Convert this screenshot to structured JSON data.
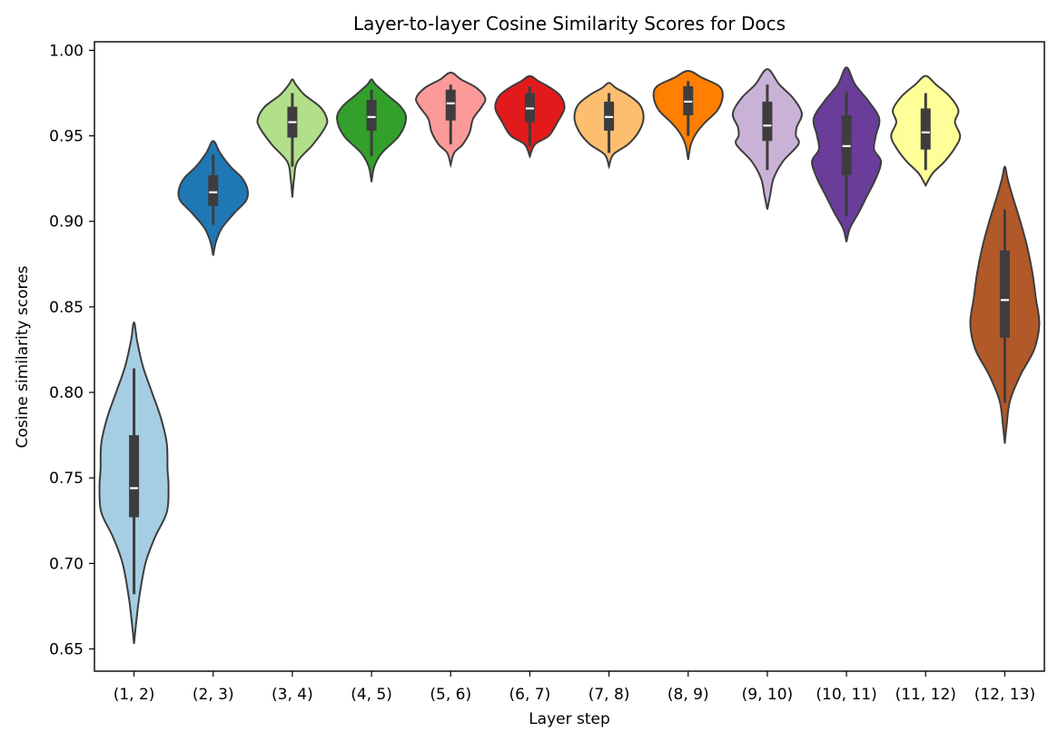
{
  "chart_data": {
    "type": "violin",
    "title": "Layer-to-layer Cosine Similarity Scores for Docs",
    "xlabel": "Layer step",
    "ylabel": "Cosine similarity scores",
    "ylim": [
      0.637,
      1.005
    ],
    "yticks": [
      "0.65",
      "0.70",
      "0.75",
      "0.80",
      "0.85",
      "0.90",
      "0.95",
      "1.00"
    ],
    "grid": false,
    "categories": [
      "(1, 2)",
      "(2, 3)",
      "(3, 4)",
      "(4, 5)",
      "(5, 6)",
      "(6, 7)",
      "(7, 8)",
      "(8, 9)",
      "(9, 10)",
      "(10, 11)",
      "(11, 12)",
      "(12, 13)"
    ],
    "violins": [
      {
        "color": "#a6cee3",
        "min": 0.653,
        "max": 0.841,
        "median": 0.744,
        "q1": 0.727,
        "q3": 0.775,
        "whisker_low": 0.682,
        "whisker_high": 0.814,
        "profile": [
          [
            0.653,
            0.0
          ],
          [
            0.665,
            0.06
          ],
          [
            0.68,
            0.15
          ],
          [
            0.7,
            0.33
          ],
          [
            0.715,
            0.6
          ],
          [
            0.73,
            0.95
          ],
          [
            0.745,
            1.0
          ],
          [
            0.755,
            0.97
          ],
          [
            0.77,
            0.95
          ],
          [
            0.785,
            0.78
          ],
          [
            0.8,
            0.52
          ],
          [
            0.815,
            0.26
          ],
          [
            0.83,
            0.09
          ],
          [
            0.841,
            0.0
          ]
        ]
      },
      {
        "color": "#1f78b4",
        "min": 0.88,
        "max": 0.947,
        "median": 0.917,
        "q1": 0.909,
        "q3": 0.927,
        "whisker_low": 0.898,
        "whisker_high": 0.939,
        "profile": [
          [
            0.88,
            0.0
          ],
          [
            0.888,
            0.08
          ],
          [
            0.896,
            0.25
          ],
          [
            0.905,
            0.62
          ],
          [
            0.912,
            0.95
          ],
          [
            0.918,
            1.0
          ],
          [
            0.925,
            0.85
          ],
          [
            0.932,
            0.5
          ],
          [
            0.94,
            0.2
          ],
          [
            0.947,
            0.0
          ]
        ]
      },
      {
        "color": "#b2df8a",
        "min": 0.914,
        "max": 0.983,
        "median": 0.958,
        "q1": 0.949,
        "q3": 0.967,
        "whisker_low": 0.932,
        "whisker_high": 0.975,
        "profile": [
          [
            0.914,
            0.0
          ],
          [
            0.925,
            0.05
          ],
          [
            0.935,
            0.15
          ],
          [
            0.945,
            0.6
          ],
          [
            0.955,
            0.95
          ],
          [
            0.96,
            1.0
          ],
          [
            0.967,
            0.8
          ],
          [
            0.974,
            0.35
          ],
          [
            0.98,
            0.1
          ],
          [
            0.983,
            0.0
          ]
        ]
      },
      {
        "color": "#33a02c",
        "min": 0.923,
        "max": 0.983,
        "median": 0.961,
        "q1": 0.953,
        "q3": 0.971,
        "whisker_low": 0.938,
        "whisker_high": 0.977,
        "profile": [
          [
            0.923,
            0.0
          ],
          [
            0.932,
            0.08
          ],
          [
            0.94,
            0.3
          ],
          [
            0.95,
            0.8
          ],
          [
            0.96,
            1.0
          ],
          [
            0.967,
            0.85
          ],
          [
            0.974,
            0.45
          ],
          [
            0.98,
            0.12
          ],
          [
            0.983,
            0.0
          ]
        ]
      },
      {
        "color": "#fb9a99",
        "min": 0.933,
        "max": 0.987,
        "median": 0.969,
        "q1": 0.959,
        "q3": 0.977,
        "whisker_low": 0.945,
        "whisker_high": 0.98,
        "profile": [
          [
            0.933,
            0.0
          ],
          [
            0.94,
            0.1
          ],
          [
            0.945,
            0.35
          ],
          [
            0.952,
            0.55
          ],
          [
            0.96,
            0.65
          ],
          [
            0.967,
            0.9
          ],
          [
            0.972,
            1.0
          ],
          [
            0.978,
            0.75
          ],
          [
            0.983,
            0.3
          ],
          [
            0.987,
            0.0
          ]
        ]
      },
      {
        "color": "#e31a1c",
        "min": 0.938,
        "max": 0.985,
        "median": 0.966,
        "q1": 0.958,
        "q3": 0.975,
        "whisker_low": 0.944,
        "whisker_high": 0.979,
        "profile": [
          [
            0.938,
            0.0
          ],
          [
            0.945,
            0.15
          ],
          [
            0.95,
            0.55
          ],
          [
            0.958,
            0.8
          ],
          [
            0.966,
            1.0
          ],
          [
            0.973,
            0.9
          ],
          [
            0.978,
            0.6
          ],
          [
            0.982,
            0.25
          ],
          [
            0.985,
            0.0
          ]
        ]
      },
      {
        "color": "#fdbf6f",
        "min": 0.932,
        "max": 0.981,
        "median": 0.961,
        "q1": 0.953,
        "q3": 0.97,
        "whisker_low": 0.94,
        "whisker_high": 0.975,
        "profile": [
          [
            0.932,
            0.0
          ],
          [
            0.939,
            0.12
          ],
          [
            0.945,
            0.55
          ],
          [
            0.952,
            0.85
          ],
          [
            0.96,
            1.0
          ],
          [
            0.968,
            0.9
          ],
          [
            0.974,
            0.55
          ],
          [
            0.978,
            0.2
          ],
          [
            0.981,
            0.0
          ]
        ]
      },
      {
        "color": "#ff7f00",
        "min": 0.936,
        "max": 0.988,
        "median": 0.97,
        "q1": 0.962,
        "q3": 0.979,
        "whisker_low": 0.95,
        "whisker_high": 0.982,
        "profile": [
          [
            0.936,
            0.0
          ],
          [
            0.945,
            0.08
          ],
          [
            0.952,
            0.25
          ],
          [
            0.958,
            0.5
          ],
          [
            0.965,
            0.85
          ],
          [
            0.973,
            1.0
          ],
          [
            0.979,
            0.9
          ],
          [
            0.984,
            0.4
          ],
          [
            0.988,
            0.0
          ]
        ]
      },
      {
        "color": "#cab2d6",
        "min": 0.907,
        "max": 0.989,
        "median": 0.956,
        "q1": 0.947,
        "q3": 0.97,
        "whisker_low": 0.93,
        "whisker_high": 0.98,
        "profile": [
          [
            0.907,
            0.0
          ],
          [
            0.915,
            0.08
          ],
          [
            0.925,
            0.18
          ],
          [
            0.935,
            0.45
          ],
          [
            0.945,
            0.9
          ],
          [
            0.95,
            0.83
          ],
          [
            0.955,
            0.85
          ],
          [
            0.963,
            1.0
          ],
          [
            0.972,
            0.75
          ],
          [
            0.98,
            0.35
          ],
          [
            0.989,
            0.0
          ]
        ]
      },
      {
        "color": "#6a3d9a",
        "min": 0.888,
        "max": 0.99,
        "median": 0.944,
        "q1": 0.927,
        "q3": 0.962,
        "whisker_low": 0.903,
        "whisker_high": 0.976,
        "profile": [
          [
            0.888,
            0.0
          ],
          [
            0.896,
            0.1
          ],
          [
            0.905,
            0.35
          ],
          [
            0.915,
            0.6
          ],
          [
            0.925,
            0.85
          ],
          [
            0.935,
            1.0
          ],
          [
            0.942,
            0.8
          ],
          [
            0.95,
            0.85
          ],
          [
            0.96,
            0.95
          ],
          [
            0.97,
            0.65
          ],
          [
            0.98,
            0.25
          ],
          [
            0.99,
            0.0
          ]
        ]
      },
      {
        "color": "#ffff99",
        "min": 0.921,
        "max": 0.985,
        "median": 0.952,
        "q1": 0.942,
        "q3": 0.966,
        "whisker_low": 0.93,
        "whisker_high": 0.975,
        "profile": [
          [
            0.921,
            0.0
          ],
          [
            0.928,
            0.2
          ],
          [
            0.935,
            0.55
          ],
          [
            0.943,
            0.85
          ],
          [
            0.95,
            1.0
          ],
          [
            0.958,
            0.85
          ],
          [
            0.965,
            0.95
          ],
          [
            0.973,
            0.7
          ],
          [
            0.98,
            0.3
          ],
          [
            0.985,
            0.0
          ]
        ]
      },
      {
        "color": "#b15928",
        "min": 0.77,
        "max": 0.932,
        "median": 0.854,
        "q1": 0.832,
        "q3": 0.883,
        "whisker_low": 0.794,
        "whisker_high": 0.907,
        "profile": [
          [
            0.77,
            0.0
          ],
          [
            0.78,
            0.05
          ],
          [
            0.795,
            0.15
          ],
          [
            0.81,
            0.45
          ],
          [
            0.825,
            0.85
          ],
          [
            0.84,
            1.0
          ],
          [
            0.855,
            0.9
          ],
          [
            0.87,
            0.8
          ],
          [
            0.885,
            0.65
          ],
          [
            0.9,
            0.45
          ],
          [
            0.915,
            0.22
          ],
          [
            0.925,
            0.08
          ],
          [
            0.932,
            0.0
          ]
        ]
      }
    ]
  }
}
